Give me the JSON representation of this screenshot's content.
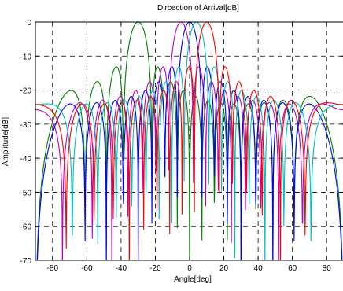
{
  "chart_data": {
    "type": "line",
    "title": "Dircection of Arrival[dB]",
    "xlabel": "Angle[deg]",
    "ylabel": "Amplitude[dB]",
    "xlim": [
      -90,
      90
    ],
    "ylim": [
      -70,
      0
    ],
    "xticks": [
      -80,
      -60,
      -40,
      -20,
      0,
      20,
      40,
      60,
      80
    ],
    "yticks": [
      0,
      -10,
      -20,
      -30,
      -40,
      -50,
      -60,
      -70
    ],
    "grid": true,
    "series": [
      {
        "color": "#007f00",
        "peak_deg": -30,
        "max_db": 0
      },
      {
        "color": "#bf00bf",
        "peak_deg": -5,
        "max_db": 0
      },
      {
        "color": "#0000ff",
        "peak_deg": 0,
        "max_db": 0
      },
      {
        "color": "#00bfbf",
        "peak_deg": 4,
        "max_db": 0
      },
      {
        "color": "#ff0000",
        "peak_deg": 10,
        "max_db": 0
      }
    ]
  }
}
